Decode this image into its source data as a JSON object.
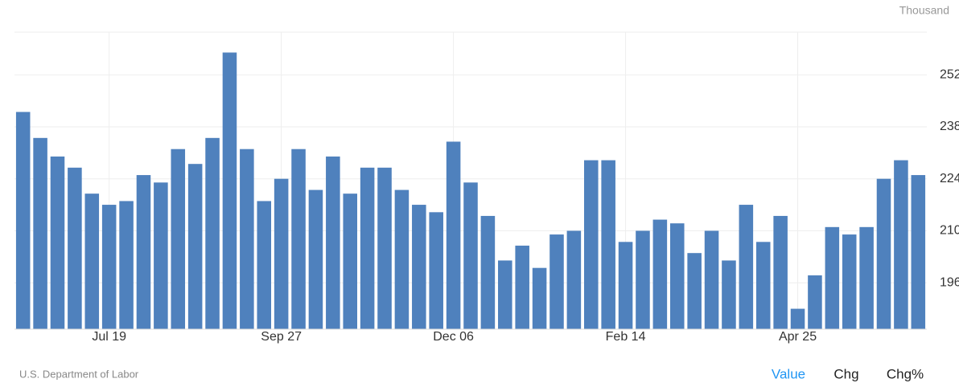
{
  "chart_data": {
    "type": "bar",
    "unit_label": "Thousand",
    "categories": [
      null,
      null,
      null,
      null,
      null,
      "Jul 19",
      null,
      null,
      null,
      null,
      null,
      null,
      null,
      null,
      null,
      "Sep 27",
      null,
      null,
      null,
      null,
      null,
      null,
      null,
      null,
      null,
      "Dec 06",
      null,
      null,
      null,
      null,
      null,
      null,
      null,
      null,
      null,
      "Feb 14",
      null,
      null,
      null,
      null,
      null,
      null,
      null,
      null,
      null,
      "Apr 25",
      null,
      null,
      null,
      null,
      null,
      null,
      null
    ],
    "values": [
      242,
      235,
      230,
      227,
      220,
      217,
      218,
      225,
      223,
      232,
      228,
      235,
      258,
      232,
      218,
      224,
      232,
      221,
      230,
      220,
      227,
      227,
      221,
      217,
      215,
      234,
      223,
      214,
      202,
      206,
      200,
      209,
      210,
      229,
      229,
      207,
      210,
      213,
      212,
      204,
      210,
      202,
      217,
      207,
      214,
      189,
      198,
      211,
      209,
      211,
      224,
      229,
      225
    ],
    "color": "#4f81bd",
    "ylim": [
      183.5,
      263.5
    ],
    "yticks": [
      196,
      210,
      224,
      238,
      252
    ],
    "grid": true,
    "source": "U.S. Department of Labor"
  },
  "controls": {
    "tabs": [
      "Value",
      "Chg",
      "Chg%"
    ],
    "active_tab": 0,
    "active_color": "#2196f3"
  }
}
